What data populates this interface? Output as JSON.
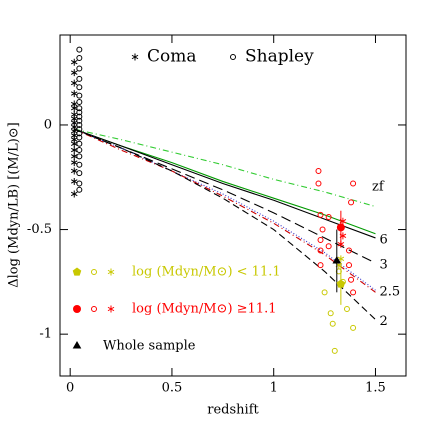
{
  "chart_data": {
    "type": "scatter",
    "xlabel": "redshift",
    "ylabel": "Δlog (Mdyn/LB) [(M/L)⊙]",
    "xlim": [
      -0.05,
      1.65
    ],
    "ylim": [
      -1.2,
      0.43
    ],
    "xticks": [
      0,
      0.5,
      1,
      1.5
    ],
    "yticks": [
      -1,
      -0.5,
      0
    ],
    "legend_top": [
      {
        "label": "Coma",
        "marker": "star",
        "color": "#000000"
      },
      {
        "label": "Shapley",
        "marker": "circle",
        "color": "#000000"
      }
    ],
    "legend": [
      {
        "label": "log (Mdyn/M⊙) < 11.1",
        "markers": [
          "pentagon",
          "circle",
          "star"
        ],
        "color": "#c8c800"
      },
      {
        "label": "log (Mdyn/M⊙) ≥11.1",
        "markers": [
          "dot",
          "circle",
          "star"
        ],
        "color": "#ff0000"
      },
      {
        "label": "Whole sample",
        "markers": [
          "triangle"
        ],
        "color": "#000000"
      }
    ],
    "zf_label": "zf",
    "series": [
      {
        "marker": "line",
        "color": "#33cc33",
        "dash": "6 3 1 3",
        "x": [
          0.02,
          0.25,
          0.5,
          0.75,
          1.0,
          1.25,
          1.5
        ],
        "values": [
          -0.02,
          -0.07,
          -0.13,
          -0.19,
          -0.26,
          -0.32,
          -0.39
        ]
      },
      {
        "marker": "line",
        "color": "#009900",
        "dash": "",
        "x": [
          0.02,
          0.25,
          0.5,
          0.75,
          1.0,
          1.25,
          1.5
        ],
        "values": [
          -0.02,
          -0.1,
          -0.18,
          -0.27,
          -0.35,
          -0.43,
          -0.52
        ]
      },
      {
        "name": "6",
        "marker": "line",
        "color": "#000000",
        "dash": "",
        "x": [
          0.02,
          0.25,
          0.5,
          0.75,
          1.0,
          1.25,
          1.5
        ],
        "values": [
          -0.02,
          -0.1,
          -0.19,
          -0.28,
          -0.36,
          -0.45,
          -0.54
        ]
      },
      {
        "name": "3",
        "marker": "line",
        "color": "#000000",
        "dash": "10 5",
        "x": [
          0.02,
          0.25,
          0.5,
          0.75,
          1.0,
          1.25,
          1.5
        ],
        "values": [
          -0.02,
          -0.11,
          -0.21,
          -0.31,
          -0.42,
          -0.54,
          -0.66
        ]
      },
      {
        "name": "2.5",
        "marker": "line",
        "color": "#3333cc",
        "dash": "1 2",
        "x": [
          0.02,
          0.25,
          0.5,
          0.75,
          1.0,
          1.25,
          1.5
        ],
        "values": [
          -0.02,
          -0.11,
          -0.22,
          -0.33,
          -0.46,
          -0.61,
          -0.79
        ]
      },
      {
        "marker": "line",
        "color": "#cc0000",
        "dash": "6 3 1 3",
        "x": [
          0.02,
          0.25,
          0.5,
          0.75,
          1.0,
          1.25,
          1.5
        ],
        "values": [
          -0.02,
          -0.12,
          -0.22,
          -0.34,
          -0.47,
          -0.62,
          -0.8
        ]
      },
      {
        "name": "2",
        "marker": "line",
        "color": "#000000",
        "dash": "7 4",
        "x": [
          0.02,
          0.25,
          0.5,
          0.75,
          1.0,
          1.25,
          1.5
        ],
        "values": [
          -0.02,
          -0.11,
          -0.22,
          -0.35,
          -0.5,
          -0.7,
          -0.93
        ]
      },
      {
        "marker": "star",
        "color": "#000000",
        "x": [
          0.02,
          0.02,
          0.02,
          0.02,
          0.02,
          0.02,
          0.02,
          0.02,
          0.02,
          0.02,
          0.02,
          0.02,
          0.02,
          0.02,
          0.02,
          0.02,
          0.02,
          0.02,
          0.02,
          0.02
        ],
        "values": [
          0.3,
          0.25,
          0.2,
          0.15,
          0.1,
          0.08,
          0.05,
          0.03,
          0.01,
          -0.01,
          -0.03,
          -0.05,
          -0.07,
          -0.09,
          -0.12,
          -0.15,
          -0.18,
          -0.22,
          -0.27,
          -0.33
        ]
      },
      {
        "marker": "circle",
        "color": "#000000",
        "x": [
          0.045,
          0.045,
          0.045,
          0.045,
          0.045,
          0.045,
          0.045,
          0.045,
          0.045,
          0.045,
          0.045,
          0.045,
          0.045,
          0.045,
          0.045,
          0.045,
          0.045,
          0.045,
          0.045,
          0.045,
          0.045,
          0.045
        ],
        "values": [
          0.36,
          0.32,
          0.27,
          0.22,
          0.18,
          0.14,
          0.11,
          0.08,
          0.06,
          0.04,
          0.02,
          0.0,
          -0.02,
          -0.04,
          -0.06,
          -0.09,
          -0.12,
          -0.15,
          -0.19,
          -0.23,
          -0.28,
          -0.31
        ]
      },
      {
        "marker": "circle",
        "color": "#ff0000",
        "x": [
          1.22,
          1.22,
          1.23,
          1.27,
          1.24,
          1.23,
          1.23,
          1.27,
          1.23,
          1.37,
          1.37,
          1.38,
          1.39,
          1.39,
          1.38
        ],
        "values": [
          -0.28,
          -0.22,
          -0.43,
          -0.44,
          -0.5,
          -0.55,
          -0.6,
          -0.58,
          -0.67,
          -0.6,
          -0.67,
          -0.74,
          -0.8,
          -0.28,
          -0.37
        ]
      },
      {
        "marker": "circle",
        "color": "#c8c800",
        "x": [
          1.25,
          1.28,
          1.29,
          1.34,
          1.39,
          1.3,
          1.32,
          1.36
        ],
        "values": [
          -0.8,
          -0.9,
          -0.95,
          -0.75,
          -0.97,
          -1.08,
          -0.7,
          -0.88
        ]
      },
      {
        "marker": "star",
        "color": "#ff0000",
        "x": [
          1.34,
          1.34,
          1.33
        ],
        "values": [
          -0.46,
          -0.53,
          -0.57
        ]
      },
      {
        "marker": "star",
        "color": "#c8c800",
        "x": [
          1.33,
          1.32
        ],
        "values": [
          -0.64,
          -0.67
        ]
      },
      {
        "marker": "triangle",
        "color": "#000000",
        "x": [
          1.31
        ],
        "values": [
          -0.65
        ],
        "errors": [
          0.15
        ]
      },
      {
        "marker": "dot",
        "color": "#ff0000",
        "x": [
          1.33
        ],
        "values": [
          -0.49
        ],
        "errors": [
          0.08
        ]
      },
      {
        "marker": "pentagon",
        "color": "#c8c800",
        "x": [
          1.33
        ],
        "values": [
          -0.76
        ],
        "errors": [
          0.1
        ]
      }
    ]
  }
}
